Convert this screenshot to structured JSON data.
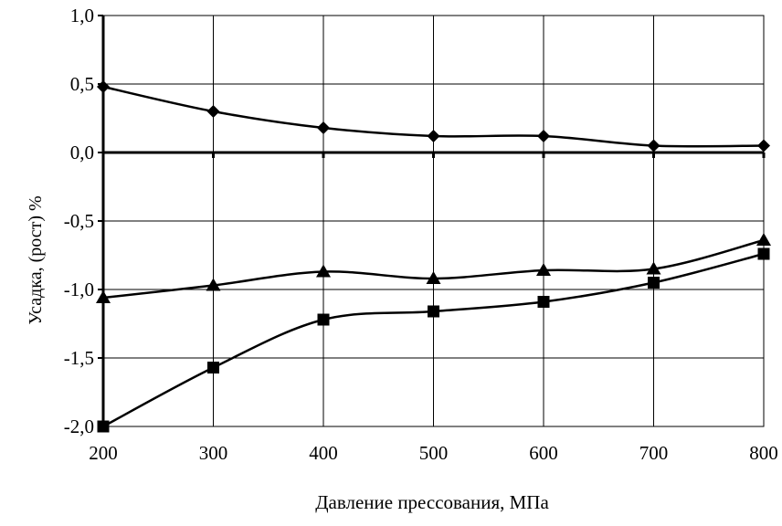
{
  "chart_data": {
    "type": "line",
    "xlabel": "Давление прессования, МПа",
    "ylabel": "Усадка, (рост) %",
    "xlim": [
      200,
      800
    ],
    "ylim": [
      -2.0,
      1.0
    ],
    "x_ticks": [
      200,
      300,
      400,
      500,
      600,
      700,
      800
    ],
    "x_tick_labels": [
      "200",
      "300",
      "400",
      "500",
      "600",
      "700",
      "800"
    ],
    "y_ticks": [
      1.0,
      0.5,
      0.0,
      -0.5,
      -1.0,
      -1.5,
      -2.0
    ],
    "y_tick_labels": [
      "1,0",
      "0,5",
      "0,0",
      "-0,5",
      "-1,0",
      "-1,5",
      "-2,0"
    ],
    "grid": true,
    "legend": "none",
    "x": [
      200,
      300,
      400,
      500,
      600,
      700,
      800
    ],
    "series": [
      {
        "marker": "diamond",
        "values": [
          0.48,
          0.3,
          0.18,
          0.12,
          0.12,
          0.05,
          0.05
        ]
      },
      {
        "marker": "triangle",
        "values": [
          -1.06,
          -0.97,
          -0.87,
          -0.92,
          -0.86,
          -0.85,
          -0.64
        ]
      },
      {
        "marker": "square",
        "values": [
          -2.0,
          -1.57,
          -1.22,
          -1.16,
          -1.09,
          -0.95,
          -0.74
        ]
      }
    ],
    "colors": {
      "line": "#000000",
      "grid": "#000000",
      "background": "#ffffff"
    }
  }
}
